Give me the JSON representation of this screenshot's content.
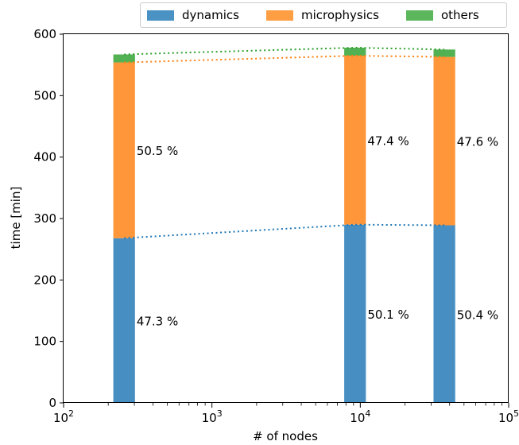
{
  "chart_data": {
    "type": "bar",
    "stacked": true,
    "x_scale": "log",
    "xlim": [
      100,
      100000
    ],
    "ylim": [
      0,
      600
    ],
    "xlabel": "# of nodes",
    "ylabel": "time [min]",
    "x_ticks": [
      {
        "value": 100,
        "base": "10",
        "exp": "2"
      },
      {
        "value": 1000,
        "base": "10",
        "exp": "3"
      },
      {
        "value": 10000,
        "base": "10",
        "exp": "4"
      },
      {
        "value": 100000,
        "base": "10",
        "exp": "5"
      }
    ],
    "y_ticks": [
      "0",
      "100",
      "200",
      "300",
      "400",
      "500",
      "600"
    ],
    "x": [
      256,
      9216,
      36864
    ],
    "series": [
      {
        "name": "dynamics",
        "color": "#1f77b4",
        "values": [
          268,
          290,
          289
        ],
        "labels": [
          "47.3 %",
          "50.1 %",
          "50.4 %"
        ]
      },
      {
        "name": "microphysics",
        "color": "#ff7f0e",
        "values": [
          286,
          275,
          274
        ],
        "labels": [
          "50.5 %",
          "47.4 %",
          "47.6 %"
        ]
      },
      {
        "name": "others",
        "color": "#2ca02c",
        "values": [
          13,
          13,
          12
        ]
      }
    ],
    "legend_position": "top-right",
    "grid": false
  }
}
